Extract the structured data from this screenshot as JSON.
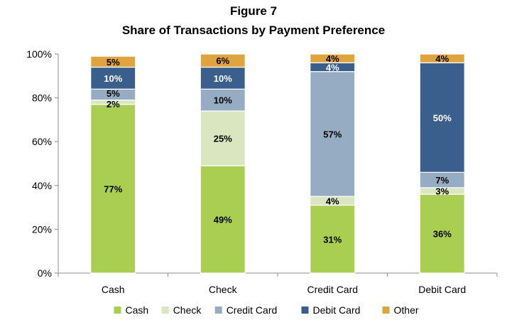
{
  "chart_data": {
    "type": "bar",
    "stacked": true,
    "title": "Figure 7",
    "subtitle": "Share of Transactions by Payment Preference",
    "categories": [
      "Cash",
      "Check",
      "Credit Card",
      "Debit Card"
    ],
    "series": [
      {
        "name": "Cash",
        "color": "#a9ce52",
        "values": [
          77,
          49,
          31,
          36
        ],
        "labels": [
          "77%",
          "49%",
          "31%",
          "36%"
        ]
      },
      {
        "name": "Check",
        "color": "#d9e6bf",
        "values": [
          2,
          25,
          4,
          3
        ],
        "labels": [
          "2%",
          "25%",
          "4%",
          "3%"
        ]
      },
      {
        "name": "Credit Card",
        "color": "#95acc2",
        "values": [
          5,
          10,
          57,
          7
        ],
        "labels": [
          "5%",
          "10%",
          "57%",
          "7%"
        ]
      },
      {
        "name": "Debit Card",
        "color": "#3a5f8c",
        "values": [
          10,
          10,
          4,
          50
        ],
        "labels": [
          "10%",
          "10%",
          "4%",
          "50%"
        ]
      },
      {
        "name": "Other",
        "color": "#e0a43f",
        "values": [
          5,
          6,
          4,
          4
        ],
        "labels": [
          "5%",
          "6%",
          "4%",
          "4%"
        ]
      }
    ],
    "yticks": [
      "0%",
      "20%",
      "40%",
      "60%",
      "80%",
      "100%"
    ],
    "ylim": [
      0,
      100
    ],
    "grid": false,
    "legend": "bottom"
  }
}
